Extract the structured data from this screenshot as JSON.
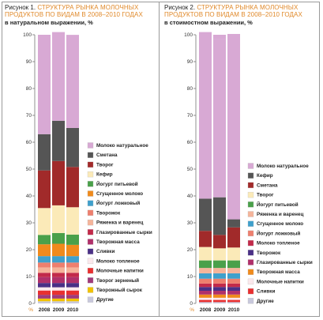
{
  "chart_data": [
    {
      "type": "bar",
      "figure_label": "Рисунок 1.",
      "title": "СТРУКТУРА РЫНКА МОЛОЧНЫХ ПРОДУКТОВ ПО ВИДАМ В 2008–2010 ГОДАХ",
      "subtitle": "в натуральном выражении, %",
      "categories": [
        "2008",
        "2009",
        "2010"
      ],
      "x_unit": "%",
      "ylim": [
        0,
        100
      ],
      "yticks": [
        0,
        10,
        20,
        30,
        40,
        50,
        60,
        70,
        80,
        90,
        100
      ],
      "legend_position": "right",
      "series": [
        {
          "name": "Другие",
          "color": "#c8c8dc",
          "values": [
            0.8,
            0.8,
            0.8
          ]
        },
        {
          "name": "Творожный сырок",
          "color": "#f2c200",
          "values": [
            1.0,
            1.0,
            1.0
          ]
        },
        {
          "name": "Творог зерненый",
          "color": "#a03a7a",
          "values": [
            1.4,
            1.4,
            1.4
          ]
        },
        {
          "name": "Молочные напитки",
          "color": "#e83030",
          "values": [
            1.6,
            1.6,
            1.6
          ]
        },
        {
          "name": "Молоко топленое",
          "color": "#fbe8ec",
          "values": [
            1.2,
            1.2,
            1.2
          ]
        },
        {
          "name": "Сливки",
          "color": "#4a2f86",
          "values": [
            1.6,
            1.6,
            1.6
          ]
        },
        {
          "name": "Творожная масса",
          "color": "#b0306a",
          "values": [
            2.2,
            2.2,
            2.2
          ]
        },
        {
          "name": "Глазированные сырки",
          "color": "#c22a4a",
          "values": [
            1.6,
            1.6,
            1.6
          ]
        },
        {
          "name": "Ряженка и варенец",
          "color": "#f5b49a",
          "values": [
            2.0,
            2.0,
            2.0
          ]
        },
        {
          "name": "Творожок",
          "color": "#ee7f6e",
          "values": [
            1.8,
            1.8,
            1.8
          ]
        },
        {
          "name": "Йогурт ложковый",
          "color": "#3fa0cc",
          "values": [
            2.4,
            2.4,
            2.4
          ]
        },
        {
          "name": "Сгущенное молоко",
          "color": "#f08a1c",
          "values": [
            4.4,
            4.6,
            4.2
          ]
        },
        {
          "name": "Йогурт питьевой",
          "color": "#4aa04a",
          "values": [
            3.5,
            4.0,
            3.8
          ]
        },
        {
          "name": "Кефир",
          "color": "#fbeab8",
          "values": [
            10.0,
            10.3,
            10.2
          ]
        },
        {
          "name": "Творог",
          "color": "#a12a2a",
          "values": [
            14.0,
            16.5,
            15.0
          ]
        },
        {
          "name": "Сметана",
          "color": "#555555",
          "values": [
            13.5,
            15.0,
            14.5
          ]
        },
        {
          "name": "Молоко натуральное",
          "color": "#d8a9d4",
          "values": [
            37.0,
            33.0,
            34.5
          ]
        }
      ]
    },
    {
      "type": "bar",
      "figure_label": "Рисунок 2.",
      "title": "СТРУКТУРА РЫНКА МОЛОЧНЫХ ПРОДУКТОВ ПО ВИДАМ В 2008–2010 ГОДАХ",
      "subtitle": "в стоимостном выражении, %",
      "categories": [
        "2008",
        "2009",
        "2010"
      ],
      "x_unit": "%",
      "ylim": [
        0,
        100
      ],
      "yticks": [
        0,
        10,
        20,
        30,
        40,
        50,
        60,
        70,
        80,
        90,
        100
      ],
      "legend_position": "right",
      "series": [
        {
          "name": "Другие",
          "color": "#c8c8dc",
          "values": [
            0.5,
            0.5,
            0.5
          ]
        },
        {
          "name": "Сливки",
          "color": "#e83030",
          "values": [
            0.8,
            0.8,
            0.8
          ]
        },
        {
          "name": "Молочные напитки",
          "color": "#fbe8ec",
          "values": [
            0.8,
            0.8,
            0.8
          ]
        },
        {
          "name": "Творожная масса",
          "color": "#f08a1c",
          "values": [
            1.2,
            1.2,
            1.2
          ]
        },
        {
          "name": "Глазированные сырки",
          "color": "#b0306a",
          "values": [
            1.4,
            1.4,
            1.4
          ]
        },
        {
          "name": "Творожок",
          "color": "#4a2f86",
          "values": [
            1.4,
            1.4,
            1.4
          ]
        },
        {
          "name": "Молоко топленое",
          "color": "#c22a4a",
          "values": [
            1.3,
            1.3,
            1.3
          ]
        },
        {
          "name": "Йогурт ложковый",
          "color": "#ee7f6e",
          "values": [
            1.8,
            1.8,
            1.8
          ]
        },
        {
          "name": "Сгущенное молоко",
          "color": "#3fa0cc",
          "values": [
            2.0,
            2.0,
            2.0
          ]
        },
        {
          "name": "Ряженка и варенец",
          "color": "#f5b49a",
          "values": [
            2.0,
            2.0,
            2.0
          ]
        },
        {
          "name": "Йогурт питьевой",
          "color": "#4aa04a",
          "values": [
            2.8,
            2.8,
            2.8
          ]
        },
        {
          "name": "Творог",
          "color": "#fbeab8",
          "values": [
            5.0,
            4.5,
            4.8
          ]
        },
        {
          "name": "Сметана",
          "color": "#a12a2a",
          "values": [
            6.0,
            5.0,
            7.5
          ]
        },
        {
          "name": "Кефир",
          "color": "#555555",
          "values": [
            12.0,
            14.0,
            3.0
          ]
        },
        {
          "name": "Молоко натуральное",
          "color": "#d8a9d4",
          "values": [
            62.0,
            59.0,
            69.0
          ]
        }
      ]
    }
  ]
}
